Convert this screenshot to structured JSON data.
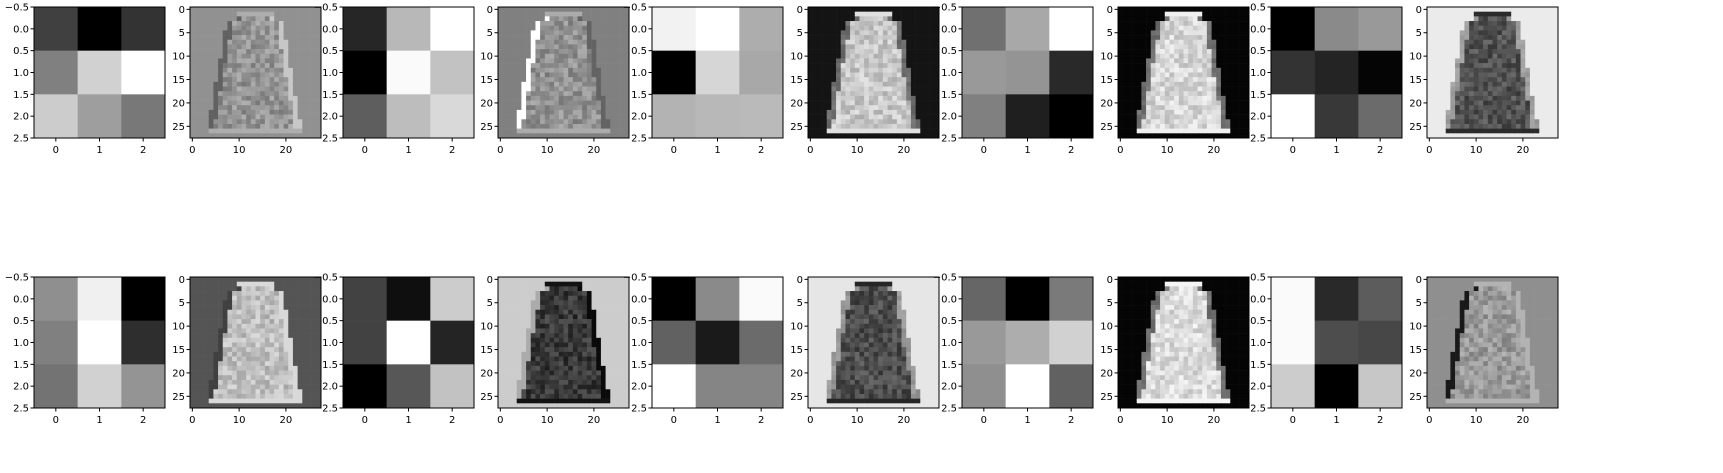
{
  "figure": {
    "rows": 2,
    "cols": 10,
    "colormap": "gray",
    "background": "#ffffff"
  },
  "kernel_axes": {
    "x_ticks": [
      "0",
      "1",
      "2"
    ],
    "y_ticks": [
      "−0.5",
      "0.0",
      "0.5",
      "1.0",
      "1.5",
      "2.0",
      "2.5"
    ]
  },
  "feature_axes": {
    "x_ticks": [
      "0",
      "10",
      "20"
    ],
    "y_ticks": [
      "0",
      "5",
      "10",
      "15",
      "20",
      "25"
    ]
  },
  "chart_data": [
    {
      "type": "heatmap",
      "panel": "row1-col1",
      "kind": "kernel",
      "values": [
        [
          0.25,
          0.0,
          0.2
        ],
        [
          0.5,
          0.82,
          1.0
        ],
        [
          0.8,
          0.62,
          0.47
        ]
      ]
    },
    {
      "type": "heatmap",
      "panel": "row1-col2",
      "kind": "feature_map",
      "shape": "dress",
      "background_level": 0.57,
      "dress_level": 0.58,
      "edge_style": "relief"
    },
    {
      "type": "heatmap",
      "panel": "row1-col3",
      "kind": "kernel",
      "values": [
        [
          0.15,
          0.72,
          1.0
        ],
        [
          0.0,
          0.98,
          0.76
        ],
        [
          0.37,
          0.74,
          0.85
        ]
      ]
    },
    {
      "type": "heatmap",
      "panel": "row1-col4",
      "kind": "feature_map",
      "shape": "dress",
      "background_level": 0.5,
      "dress_level": 0.57,
      "edge_style": "bright-left"
    },
    {
      "type": "heatmap",
      "panel": "row1-col5",
      "kind": "kernel",
      "values": [
        [
          0.95,
          1.0,
          0.68
        ],
        [
          0.0,
          0.84,
          0.66
        ],
        [
          0.7,
          0.72,
          0.73
        ]
      ]
    },
    {
      "type": "heatmap",
      "panel": "row1-col6",
      "kind": "feature_map",
      "shape": "dress",
      "background_level": 0.08,
      "dress_level": 0.78,
      "edge_style": "soft"
    },
    {
      "type": "heatmap",
      "panel": "row1-col7",
      "kind": "kernel",
      "values": [
        [
          0.44,
          0.66,
          1.0
        ],
        [
          0.6,
          0.58,
          0.16
        ],
        [
          0.5,
          0.12,
          0.0
        ]
      ]
    },
    {
      "type": "heatmap",
      "panel": "row1-col8",
      "kind": "feature_map",
      "shape": "dress",
      "background_level": 0.02,
      "dress_level": 0.84,
      "edge_style": "soft"
    },
    {
      "type": "heatmap",
      "panel": "row1-col9",
      "kind": "kernel",
      "values": [
        [
          0.0,
          0.54,
          0.6
        ],
        [
          0.2,
          0.14,
          0.02
        ],
        [
          1.0,
          0.22,
          0.42
        ]
      ]
    },
    {
      "type": "heatmap",
      "panel": "row1-col10",
      "kind": "feature_map",
      "shape": "dress",
      "background_level": 0.92,
      "dress_level": 0.32,
      "edge_style": "soft"
    },
    {
      "type": "heatmap",
      "panel": "row2-col1",
      "kind": "kernel",
      "values": [
        [
          0.56,
          0.94,
          0.0
        ],
        [
          0.5,
          1.0,
          0.18
        ],
        [
          0.45,
          0.82,
          0.58
        ]
      ]
    },
    {
      "type": "heatmap",
      "panel": "row2-col2",
      "kind": "feature_map",
      "shape": "dress",
      "background_level": 0.33,
      "dress_level": 0.75,
      "edge_style": "dark-left"
    },
    {
      "type": "heatmap",
      "panel": "row2-col3",
      "kind": "kernel",
      "values": [
        [
          0.26,
          0.06,
          0.8
        ],
        [
          0.26,
          1.0,
          0.14
        ],
        [
          0.0,
          0.34,
          0.76
        ]
      ]
    },
    {
      "type": "heatmap",
      "panel": "row2-col4",
      "kind": "feature_map",
      "shape": "dress",
      "background_level": 0.8,
      "dress_level": 0.22,
      "edge_style": "bright-left"
    },
    {
      "type": "heatmap",
      "panel": "row2-col5",
      "kind": "kernel",
      "values": [
        [
          0.0,
          0.54,
          0.98
        ],
        [
          0.38,
          0.1,
          0.42
        ],
        [
          1.0,
          0.52,
          0.52
        ]
      ]
    },
    {
      "type": "heatmap",
      "panel": "row2-col6",
      "kind": "feature_map",
      "shape": "dress",
      "background_level": 0.9,
      "dress_level": 0.3,
      "edge_style": "soft"
    },
    {
      "type": "heatmap",
      "panel": "row2-col7",
      "kind": "kernel",
      "values": [
        [
          0.4,
          0.0,
          0.48
        ],
        [
          0.6,
          0.68,
          0.82
        ],
        [
          0.56,
          1.0,
          0.38
        ]
      ]
    },
    {
      "type": "heatmap",
      "panel": "row2-col8",
      "kind": "feature_map",
      "shape": "dress",
      "background_level": 0.02,
      "dress_level": 0.86,
      "edge_style": "soft"
    },
    {
      "type": "heatmap",
      "panel": "row2-col9",
      "kind": "kernel",
      "values": [
        [
          0.98,
          0.16,
          0.36
        ],
        [
          0.98,
          0.3,
          0.28
        ],
        [
          0.8,
          0.0,
          0.78
        ]
      ]
    },
    {
      "type": "heatmap",
      "panel": "row2-col10",
      "kind": "feature_map",
      "shape": "dress",
      "background_level": 0.56,
      "dress_level": 0.6,
      "edge_style": "dark-left"
    }
  ]
}
